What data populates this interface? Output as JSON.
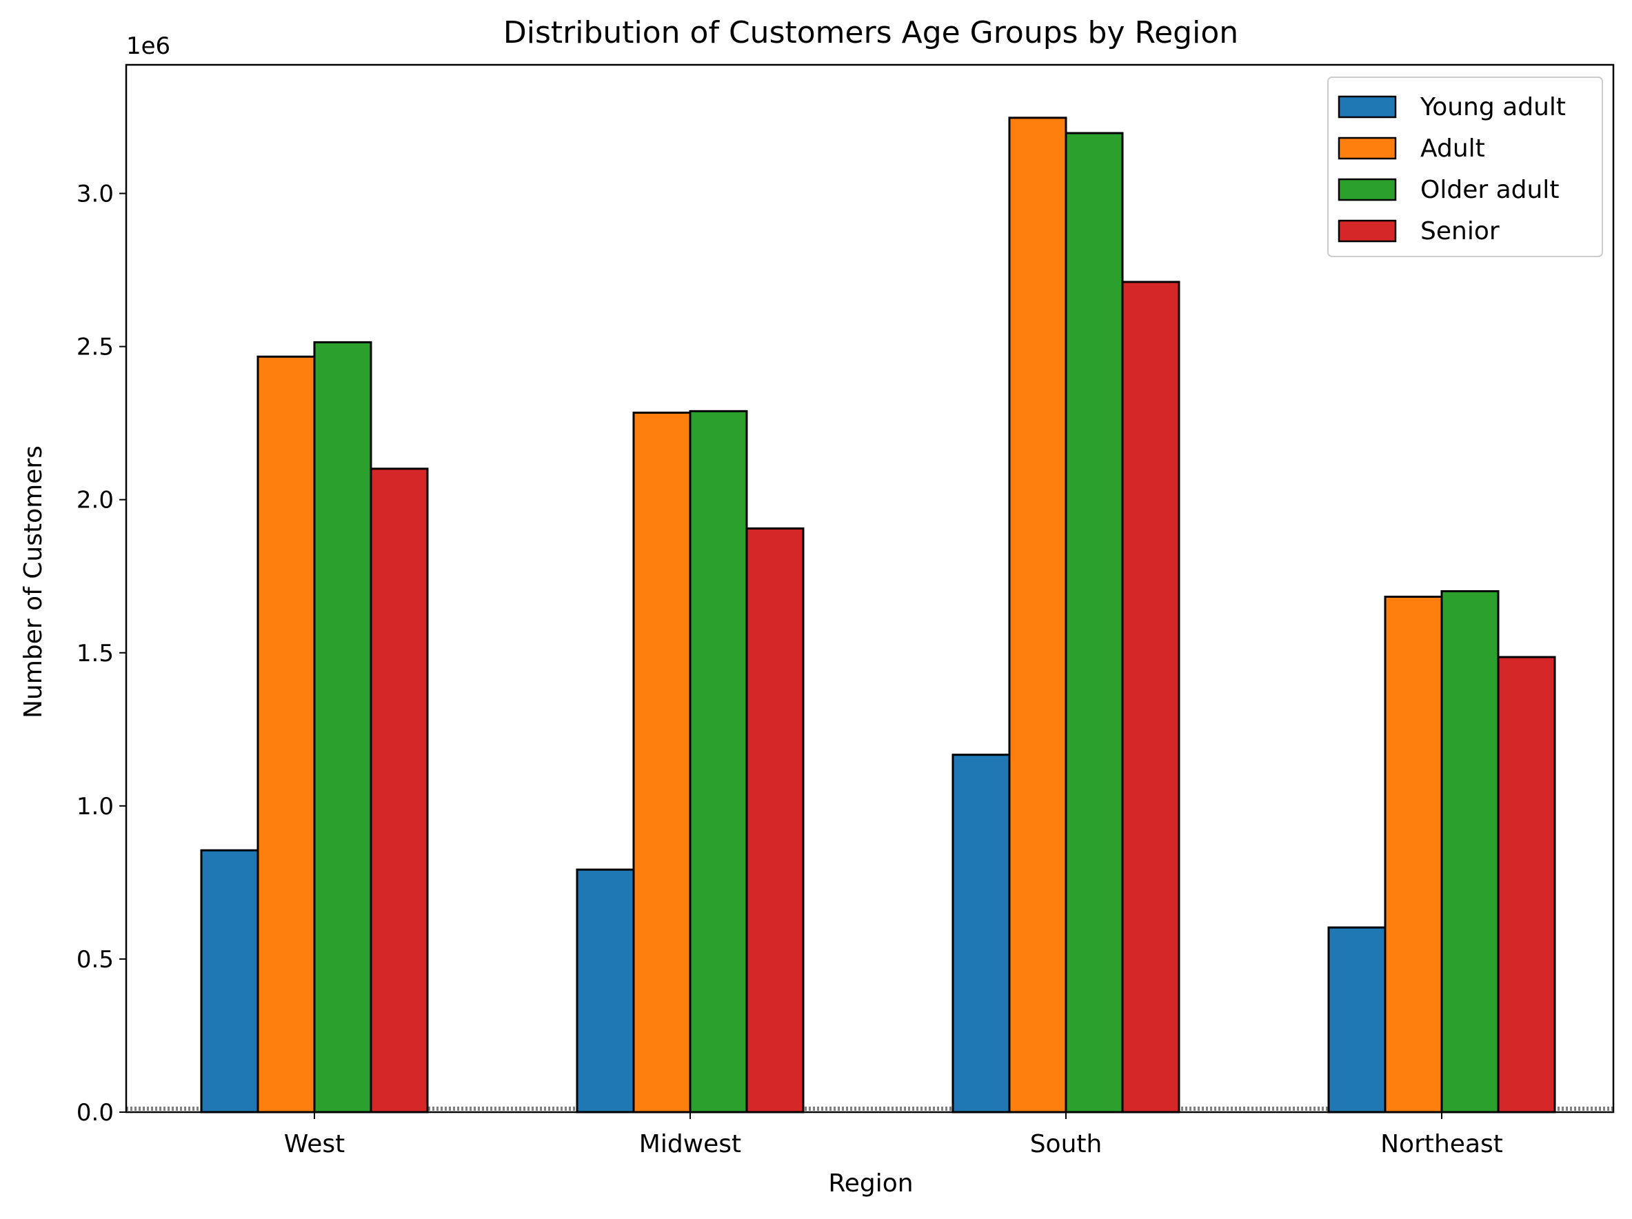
{
  "chart_data": {
    "type": "bar",
    "title": "Distribution of Customers Age Groups by Region",
    "xlabel": "Region",
    "ylabel": "Number of Customers",
    "y_offset_label": "1e6",
    "categories": [
      "West",
      "Midwest",
      "South",
      "Northeast"
    ],
    "series": [
      {
        "name": "Young adult",
        "color": "#1f77b4",
        "values": [
          855000,
          792000,
          1167000,
          603000
        ]
      },
      {
        "name": "Adult",
        "color": "#ff7f0e",
        "values": [
          2467000,
          2284000,
          3247000,
          1683000
        ]
      },
      {
        "name": "Older adult",
        "color": "#2ca02c",
        "values": [
          2514000,
          2289000,
          3197000,
          1701000
        ]
      },
      {
        "name": "Senior",
        "color": "#d62728",
        "values": [
          2101000,
          1906000,
          2711000,
          1486000
        ]
      }
    ],
    "ylim": [
      0,
      3420000
    ],
    "yticks": [
      0,
      500000,
      1000000,
      1500000,
      2000000,
      2500000,
      3000000
    ],
    "ytick_labels": [
      "0.0",
      "0.5",
      "1.0",
      "1.5",
      "2.0",
      "2.5",
      "3.0"
    ],
    "baseline_line": {
      "style": "dotted",
      "color": "#808080",
      "value": 0
    },
    "legend_position": "top-right",
    "grid": false,
    "bar_edge_color": "#000000"
  }
}
